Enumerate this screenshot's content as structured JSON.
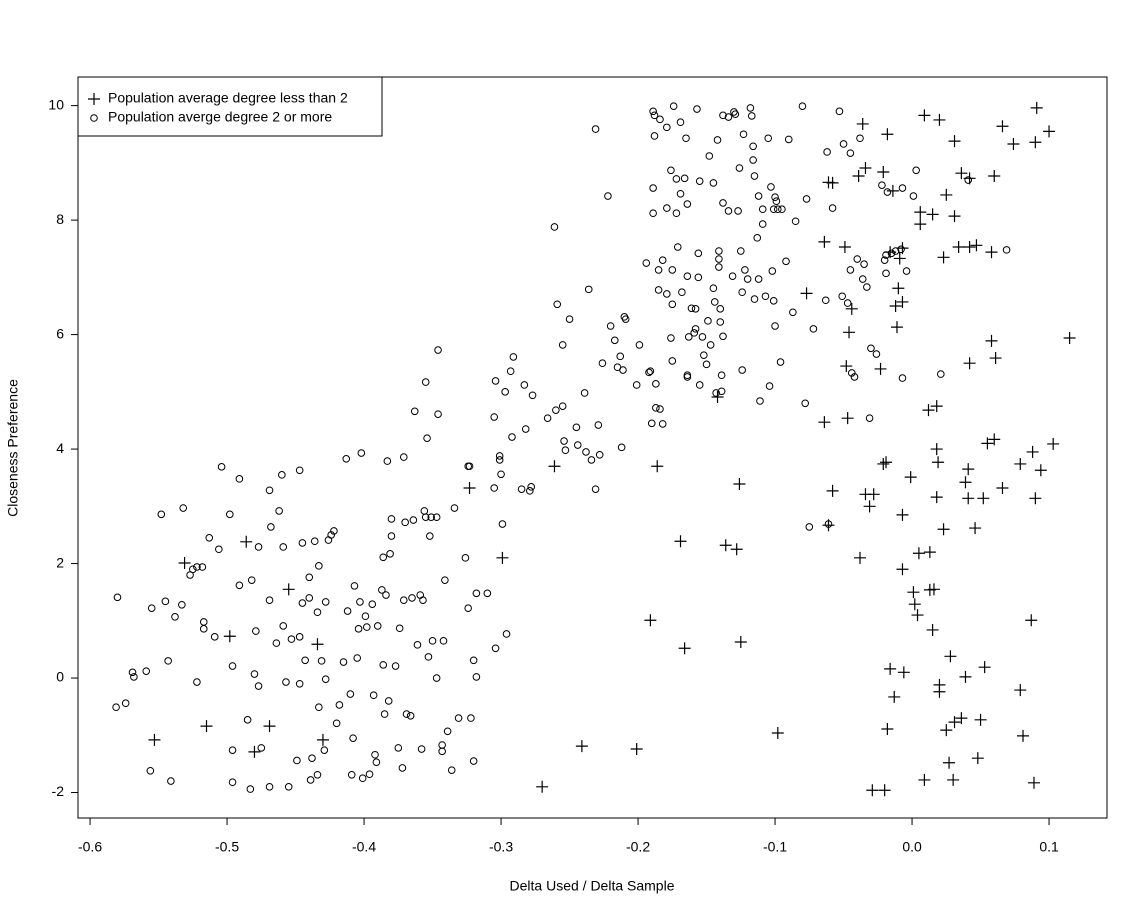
{
  "chart_data": {
    "type": "scatter",
    "x_label": "Delta Used / Delta Sample",
    "y_label": "Closeness Preference",
    "xlim": [
      -0.6088,
      0.1423
    ],
    "ylim": [
      -2.445,
      10.5
    ],
    "xticks": [
      -0.6,
      -0.5,
      -0.4,
      -0.3,
      -0.2,
      -0.1,
      {
        "value": 0,
        "label": "0.0"
      },
      0.1
    ],
    "yticks": [
      -2,
      0,
      2,
      4,
      6,
      8,
      10
    ],
    "legend": "top left",
    "series": [
      {
        "name": "Population average degree less than 2",
        "color": "#000000",
        "marker": "plus",
        "x": [
          -0.531,
          -0.486,
          -0.455,
          -0.498,
          -0.434,
          -0.515,
          -0.469,
          -0.553,
          -0.48,
          -0.43,
          -0.323,
          -0.299,
          -0.261,
          -0.27,
          -0.241,
          -0.201,
          -0.191,
          -0.186,
          -0.166,
          -0.169,
          -0.142,
          -0.136,
          -0.128,
          -0.126,
          -0.125,
          -0.098,
          -0.077,
          -0.064,
          -0.061,
          -0.058,
          -0.064,
          -0.061,
          -0.058,
          -0.049,
          -0.046,
          -0.047,
          -0.048,
          -0.044,
          -0.039,
          -0.036,
          -0.034,
          -0.038,
          -0.034,
          -0.031,
          -0.028,
          -0.029,
          -0.023,
          -0.021,
          -0.019,
          -0.02,
          -0.018,
          -0.016,
          -0.013,
          -0.018,
          -0.021,
          -0.014,
          -0.016,
          -0.012,
          -0.011,
          -0.01,
          -0.009,
          -0.007,
          -0.007,
          -0.007,
          -0.007,
          -0.006,
          -0.001,
          0.001,
          0.002,
          0.004,
          0.005,
          0.006,
          0.006,
          0.009,
          0.009,
          0.012,
          0.013,
          0.013,
          0.015,
          0.015,
          0.016,
          0.018,
          0.018,
          0.018,
          0.019,
          0.02,
          0.02,
          0.02,
          0.023,
          0.023,
          0.025,
          0.025,
          0.027,
          0.028,
          0.031,
          0.031,
          0.03,
          0.031,
          0.034,
          0.036,
          0.036,
          0.039,
          0.039,
          0.041,
          0.041,
          0.042,
          0.042,
          0.042,
          0.047,
          0.046,
          0.048,
          0.05,
          0.052,
          0.053,
          0.055,
          0.058,
          0.058,
          0.06,
          0.061,
          0.06,
          0.066,
          0.066,
          0.074,
          0.079,
          0.079,
          0.081,
          0.088,
          0.087,
          0.09,
          0.09,
          0.091,
          0.089,
          0.094,
          0.1,
          0.103,
          0.115
        ],
        "values": [
          2.01,
          2.38,
          1.55,
          0.73,
          0.59,
          -0.84,
          -0.84,
          -1.08,
          -1.29,
          -1.08,
          3.32,
          2.1,
          3.7,
          -1.9,
          -1.19,
          -1.24,
          1.01,
          3.7,
          0.52,
          2.39,
          4.91,
          2.32,
          2.25,
          3.39,
          0.63,
          -0.96,
          6.72,
          7.62,
          8.66,
          8.65,
          4.47,
          2.67,
          3.27,
          7.53,
          6.04,
          4.54,
          5.45,
          6.45,
          8.77,
          9.68,
          8.91,
          2.1,
          3.21,
          3.0,
          3.21,
          -1.96,
          5.4,
          3.74,
          3.77,
          -1.96,
          -0.89,
          0.16,
          -0.33,
          9.5,
          8.84,
          8.51,
          7.44,
          6.5,
          6.13,
          6.81,
          7.33,
          7.51,
          6.57,
          2.85,
          1.9,
          0.1,
          3.51,
          1.5,
          1.29,
          1.1,
          2.18,
          7.93,
          8.14,
          -1.78,
          9.83,
          4.68,
          2.2,
          1.54,
          8.1,
          0.84,
          1.55,
          4.0,
          4.75,
          3.16,
          3.77,
          -0.12,
          -0.24,
          9.75,
          7.35,
          2.6,
          8.44,
          -0.91,
          -1.48,
          0.38,
          9.38,
          8.07,
          -1.78,
          -0.77,
          7.53,
          8.82,
          -0.7,
          0.02,
          3.42,
          3.65,
          3.14,
          7.53,
          8.73,
          5.5,
          7.56,
          2.62,
          -1.4,
          -0.73,
          3.14,
          0.19,
          4.1,
          5.89,
          7.44,
          4.17,
          5.59,
          8.77,
          3.32,
          9.64,
          9.33,
          3.74,
          -0.21,
          -1.01,
          3.95,
          1.01,
          3.14,
          9.36,
          9.96,
          -1.83,
          3.63,
          9.55,
          4.09,
          5.94
        ]
      },
      {
        "name": "Population averge degree 2 or more",
        "color": "#000000",
        "marker": "circle",
        "x": [
          -0.58,
          -0.581,
          -0.574,
          -0.569,
          -0.568,
          -0.559,
          -0.556,
          -0.555,
          -0.548,
          -0.545,
          -0.543,
          -0.541,
          -0.538,
          -0.533,
          -0.532,
          -0.527,
          -0.525,
          -0.522,
          -0.522,
          -0.518,
          -0.517,
          -0.517,
          -0.513,
          -0.509,
          -0.506,
          -0.504,
          -0.498,
          -0.496,
          -0.496,
          -0.496,
          -0.491,
          -0.491,
          -0.485,
          -0.483,
          -0.482,
          -0.48,
          -0.479,
          -0.477,
          -0.475,
          -0.477,
          -0.469,
          -0.469,
          -0.469,
          -0.468,
          -0.464,
          -0.462,
          -0.46,
          -0.459,
          -0.459,
          -0.457,
          -0.455,
          -0.453,
          -0.449,
          -0.447,
          -0.447,
          -0.447,
          -0.445,
          -0.445,
          -0.443,
          -0.44,
          -0.44,
          -0.439,
          -0.438,
          -0.436,
          -0.434,
          -0.434,
          -0.433,
          -0.433,
          -0.431,
          -0.429,
          -0.428,
          -0.428,
          -0.426,
          -0.424,
          -0.422,
          -0.42,
          -0.418,
          -0.415,
          -0.413,
          -0.412,
          -0.41,
          -0.409,
          -0.408,
          -0.407,
          -0.405,
          -0.404,
          -0.402,
          -0.403,
          -0.401,
          -0.399,
          -0.398,
          -0.396,
          -0.394,
          -0.393,
          -0.392,
          -0.391,
          -0.39,
          -0.387,
          -0.386,
          -0.386,
          -0.385,
          -0.384,
          -0.383,
          -0.382,
          -0.38,
          -0.381,
          -0.38,
          -0.377,
          -0.375,
          -0.374,
          -0.372,
          -0.371,
          -0.371,
          -0.37,
          -0.369,
          -0.366,
          -0.365,
          -0.364,
          -0.363,
          -0.361,
          -0.358,
          -0.359,
          -0.357,
          -0.356,
          -0.355,
          -0.354,
          -0.355,
          -0.353,
          -0.352,
          -0.351,
          -0.35,
          -0.346,
          -0.347,
          -0.346,
          -0.347,
          -0.343,
          -0.343,
          -0.342,
          -0.341,
          -0.339,
          -0.336,
          -0.334,
          -0.331,
          -0.326,
          -0.324,
          -0.323,
          -0.324,
          -0.322,
          -0.32,
          -0.32,
          -0.318,
          -0.318,
          -0.31,
          -0.305,
          -0.305,
          -0.304,
          -0.304,
          -0.301,
          -0.301,
          -0.3,
          -0.299,
          -0.297,
          -0.296,
          -0.293,
          -0.292,
          -0.291,
          -0.285,
          -0.283,
          -0.282,
          -0.279,
          -0.278,
          -0.277,
          -0.266,
          -0.261,
          -0.26,
          -0.259,
          -0.255,
          -0.255,
          -0.254,
          -0.253,
          -0.25,
          -0.245,
          -0.244,
          -0.239,
          -0.238,
          -0.236,
          -0.234,
          -0.231,
          -0.231,
          -0.229,
          -0.228,
          -0.226,
          -0.222,
          -0.22,
          -0.217,
          -0.215,
          -0.213,
          -0.212,
          -0.211,
          -0.21,
          -0.209,
          -0.201,
          -0.199,
          -0.194,
          -0.192,
          -0.191,
          -0.19,
          -0.189,
          -0.189,
          -0.189,
          -0.188,
          -0.188,
          -0.187,
          -0.187,
          -0.185,
          -0.185,
          -0.184,
          -0.184,
          -0.182,
          -0.182,
          -0.179,
          -0.179,
          -0.179,
          -0.176,
          -0.176,
          -0.175,
          -0.175,
          -0.175,
          -0.174,
          -0.172,
          -0.172,
          -0.171,
          -0.169,
          -0.169,
          -0.168,
          -0.166,
          -0.165,
          -0.164,
          -0.164,
          -0.164,
          -0.164,
          -0.163,
          -0.161,
          -0.159,
          -0.158,
          -0.158,
          -0.157,
          -0.156,
          -0.156,
          -0.155,
          -0.155,
          -0.153,
          -0.152,
          -0.15,
          -0.149,
          -0.148,
          -0.147,
          -0.145,
          -0.145,
          -0.144,
          -0.143,
          -0.142,
          -0.141,
          -0.141,
          -0.141,
          -0.14,
          -0.14,
          -0.139,
          -0.139,
          -0.138,
          -0.138,
          -0.138,
          -0.134,
          -0.134,
          -0.131,
          -0.13,
          -0.129,
          -0.127,
          -0.126,
          -0.125,
          -0.124,
          -0.124,
          -0.123,
          -0.122,
          -0.12,
          -0.118,
          -0.117,
          -0.116,
          -0.116,
          -0.115,
          -0.115,
          -0.113,
          -0.112,
          -0.112,
          -0.111,
          -0.109,
          -0.109,
          -0.107,
          -0.105,
          -0.104,
          -0.103,
          -0.102,
          -0.101,
          -0.101,
          -0.1,
          -0.1,
          -0.099,
          -0.098,
          -0.096,
          -0.095,
          -0.092,
          -0.09,
          -0.087,
          -0.085,
          -0.08,
          -0.078,
          -0.077,
          -0.075,
          -0.072,
          -0.063,
          -0.062,
          -0.061,
          -0.058,
          -0.053,
          -0.051,
          -0.05,
          -0.047,
          -0.045,
          -0.045,
          -0.044,
          -0.042,
          -0.04,
          -0.038,
          -0.036,
          -0.035,
          -0.033,
          -0.031,
          -0.03,
          -0.026,
          -0.022,
          -0.02,
          -0.019,
          -0.019,
          -0.018,
          -0.015,
          -0.012,
          -0.008,
          -0.007,
          -0.007,
          -0.004,
          0.001,
          0.003,
          0.021,
          0.041,
          0.069
        ],
        "values": [
          1.41,
          -0.51,
          -0.44,
          0.1,
          0.02,
          0.12,
          -1.62,
          1.22,
          2.86,
          1.34,
          0.3,
          -1.8,
          1.07,
          1.28,
          2.97,
          1.8,
          1.9,
          -0.07,
          1.94,
          1.94,
          0.98,
          0.86,
          2.45,
          0.72,
          2.25,
          3.69,
          2.86,
          0.21,
          -1.26,
          -1.82,
          3.48,
          1.62,
          -0.73,
          -1.94,
          1.71,
          0.07,
          0.82,
          -0.14,
          -1.22,
          2.29,
          3.28,
          1.36,
          -1.9,
          2.64,
          0.61,
          2.92,
          3.55,
          2.29,
          0.91,
          -0.07,
          -1.9,
          0.68,
          -1.44,
          -0.1,
          3.63,
          0.72,
          2.36,
          1.31,
          0.31,
          1.4,
          1.76,
          -1.78,
          -1.4,
          2.39,
          1.15,
          -1.69,
          1.96,
          -0.51,
          0.3,
          -1.26,
          1.33,
          -0.02,
          2.41,
          2.5,
          2.57,
          -0.79,
          -0.47,
          0.28,
          3.83,
          1.17,
          -0.28,
          -1.69,
          -1.05,
          1.61,
          0.35,
          0.86,
          3.93,
          1.33,
          -1.75,
          1.08,
          0.89,
          -1.68,
          1.29,
          -0.3,
          -1.34,
          -1.47,
          0.91,
          1.54,
          0.23,
          2.11,
          -0.63,
          1.45,
          3.79,
          -0.4,
          2.48,
          2.17,
          2.78,
          0.21,
          -1.22,
          0.87,
          -1.57,
          3.86,
          1.36,
          2.72,
          -0.63,
          -0.66,
          1.4,
          2.76,
          4.66,
          0.58,
          -1.24,
          1.45,
          1.36,
          2.92,
          5.17,
          4.19,
          2.81,
          0.37,
          2.48,
          2.81,
          0.65,
          4.61,
          2.81,
          5.73,
          0.0,
          -1.17,
          -1.28,
          0.65,
          1.71,
          -0.93,
          -1.61,
          2.97,
          -0.7,
          2.1,
          3.7,
          3.7,
          1.22,
          -0.7,
          0.31,
          -1.45,
          0.02,
          1.48,
          1.48,
          4.56,
          3.32,
          0.52,
          5.19,
          3.88,
          3.81,
          3.56,
          2.69,
          5.0,
          0.77,
          5.36,
          4.21,
          5.61,
          3.3,
          5.12,
          4.35,
          3.27,
          3.34,
          4.94,
          4.54,
          7.88,
          4.68,
          6.53,
          5.82,
          4.75,
          4.14,
          3.98,
          6.27,
          4.38,
          4.07,
          4.98,
          3.95,
          6.79,
          3.81,
          3.3,
          9.59,
          4.42,
          3.9,
          5.5,
          8.42,
          6.15,
          5.9,
          5.43,
          5.62,
          4.03,
          5.38,
          6.31,
          6.27,
          5.12,
          5.82,
          7.25,
          5.34,
          5.36,
          4.45,
          8.12,
          8.56,
          9.9,
          9.83,
          9.47,
          5.14,
          4.72,
          7.13,
          6.78,
          4.7,
          9.76,
          7.3,
          4.44,
          6.71,
          8.21,
          9.62,
          5.94,
          8.87,
          7.13,
          6.53,
          5.54,
          9.99,
          8.12,
          8.72,
          7.53,
          9.71,
          8.46,
          6.74,
          8.73,
          9.43,
          8.28,
          7.02,
          5.26,
          5.29,
          5.96,
          6.46,
          6.03,
          6.1,
          6.45,
          9.94,
          7.42,
          7.0,
          8.68,
          5.12,
          5.96,
          5.64,
          5.48,
          6.24,
          9.12,
          5.82,
          8.65,
          6.81,
          6.57,
          4.98,
          9.4,
          7.18,
          7.46,
          7.32,
          6.22,
          6.45,
          5.29,
          5.01,
          9.83,
          8.3,
          5.97,
          8.16,
          9.8,
          7.02,
          9.89,
          9.85,
          8.16,
          8.91,
          7.46,
          6.74,
          5.38,
          9.5,
          7.13,
          6.97,
          9.96,
          9.82,
          9.05,
          9.29,
          8.77,
          6.62,
          7.69,
          6.97,
          8.42,
          4.84,
          7.93,
          8.19,
          6.67,
          9.43,
          5.1,
          8.58,
          7.11,
          6.59,
          8.19,
          6.15,
          8.4,
          8.33,
          8.19,
          5.52,
          8.19,
          7.28,
          9.41,
          6.39,
          7.98,
          9.99,
          4.8,
          8.37,
          2.64,
          6.1,
          6.6,
          9.19,
          2.69,
          8.21,
          9.9,
          6.67,
          9.33,
          6.55,
          9.17,
          7.13,
          5.33,
          5.26,
          7.32,
          9.43,
          6.97,
          7.23,
          6.83,
          4.54,
          5.76,
          5.66,
          8.61,
          7.3,
          7.39,
          7.07,
          8.49,
          7.42,
          7.46,
          7.49,
          8.56,
          5.24,
          7.11,
          8.42,
          8.87,
          5.31,
          8.7,
          7.48
        ]
      }
    ]
  }
}
